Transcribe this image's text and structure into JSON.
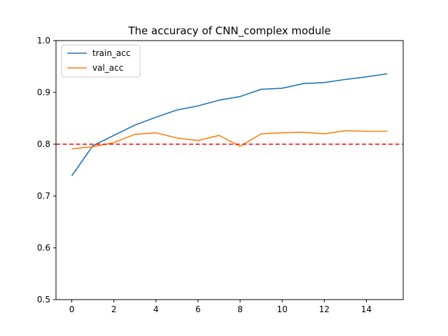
{
  "chart_data": {
    "type": "line",
    "title": "The accuracy of CNN_complex module",
    "xlabel": "",
    "ylabel": "",
    "xlim": [
      -0.75,
      15.75
    ],
    "ylim": [
      0.5,
      1.0
    ],
    "x": [
      0,
      1,
      2,
      3,
      4,
      5,
      6,
      7,
      8,
      9,
      10,
      11,
      12,
      13,
      14,
      15
    ],
    "xticks": [
      0,
      2,
      4,
      6,
      8,
      10,
      12,
      14
    ],
    "yticks": [
      0.5,
      0.6,
      0.7,
      0.8,
      0.9,
      1.0
    ],
    "xtick_labels": [
      "0",
      "2",
      "4",
      "6",
      "8",
      "10",
      "12",
      "14"
    ],
    "ytick_labels": [
      "0.5",
      "0.6",
      "0.7",
      "0.8",
      "0.9",
      "1.0"
    ],
    "series": [
      {
        "name": "train_acc",
        "color": "#1f77b4",
        "values": [
          0.739,
          0.797,
          0.817,
          0.837,
          0.852,
          0.866,
          0.874,
          0.885,
          0.892,
          0.906,
          0.908,
          0.917,
          0.919,
          0.925,
          0.93,
          0.936
        ]
      },
      {
        "name": "val_acc",
        "color": "#ff7f0e",
        "values": [
          0.791,
          0.795,
          0.803,
          0.819,
          0.822,
          0.812,
          0.807,
          0.817,
          0.796,
          0.82,
          0.822,
          0.823,
          0.82,
          0.826,
          0.825,
          0.825
        ]
      }
    ],
    "reference_line": {
      "y": 0.8,
      "color": "#ff0000",
      "style": "dashed"
    },
    "legend_position": "top-left",
    "grid": false
  }
}
